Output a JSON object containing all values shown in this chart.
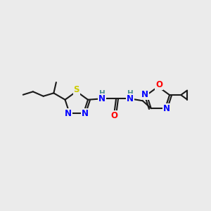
{
  "background_color": "#ebebeb",
  "bond_color": "#1a1a1a",
  "bond_width": 1.5,
  "atom_colors": {
    "N": "#0000ff",
    "S": "#cccc00",
    "O": "#ff0000",
    "H": "#4a9090",
    "C": "#1a1a1a"
  },
  "font_size": 8.5,
  "font_size_H": 7.5,
  "figsize": [
    3.0,
    3.0
  ],
  "dpi": 100
}
